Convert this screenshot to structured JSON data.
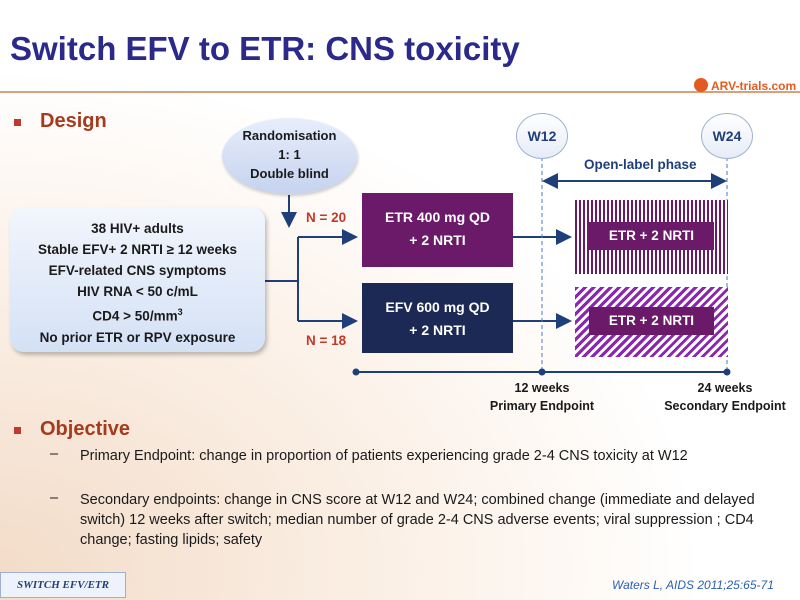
{
  "title": "Switch EFV to ETR: CNS toxicity",
  "logo": {
    "text": "ARV-trials",
    "suffix": ".com"
  },
  "design": {
    "heading": "Design",
    "patients": [
      "38 HIV+ adults",
      "Stable EFV+ 2 NRTI ≥ 12 weeks",
      "EFV-related CNS symptoms",
      "HIV RNA < 50 c/mL",
      "CD4 > 50/mm",
      "No prior ETR or RPV exposure"
    ],
    "patients_cd4_sup": "3",
    "randomisation": [
      "Randomisation",
      "1: 1",
      "Double blind"
    ],
    "arms": [
      {
        "n": "N = 20",
        "line1": "ETR 400 mg QD",
        "line2": "+ 2 NRTI",
        "open_label": "ETR + 2 NRTI"
      },
      {
        "n": "N = 18",
        "line1": "EFV 600 mg QD",
        "line2": "+ 2 NRTI",
        "open_label": "ETR + 2 NRTI"
      }
    ],
    "weeks": [
      "W12",
      "W24"
    ],
    "open_label_phase": "Open-label phase",
    "timeline": [
      {
        "line1": "12 weeks",
        "line2": "Primary Endpoint"
      },
      {
        "line1": "24 weeks",
        "line2": "Secondary Endpoint"
      }
    ]
  },
  "objective": {
    "heading": "Objective",
    "items": [
      "Primary Endpoint: change in proportion of patients experiencing grade 2-4 CNS toxicity at W12",
      "Secondary endpoints: change in CNS score at W12 and W24; combined change (immediate and delayed switch) 12 weeks after switch; median number of grade 2-4 CNS adverse events; viral suppression ; CD4 change; fasting lipids; safety"
    ]
  },
  "footer_tag": "SWITCH EFV/ETR",
  "citation": "Waters L, AIDS 2011;25:65-71",
  "colors": {
    "title": "#2b2a8a",
    "heading": "#a53a1c",
    "arm_etr": "#6a1a68",
    "arm_efv": "#1b2954",
    "n_label": "#c0392b",
    "line": "#1f3f7a"
  }
}
